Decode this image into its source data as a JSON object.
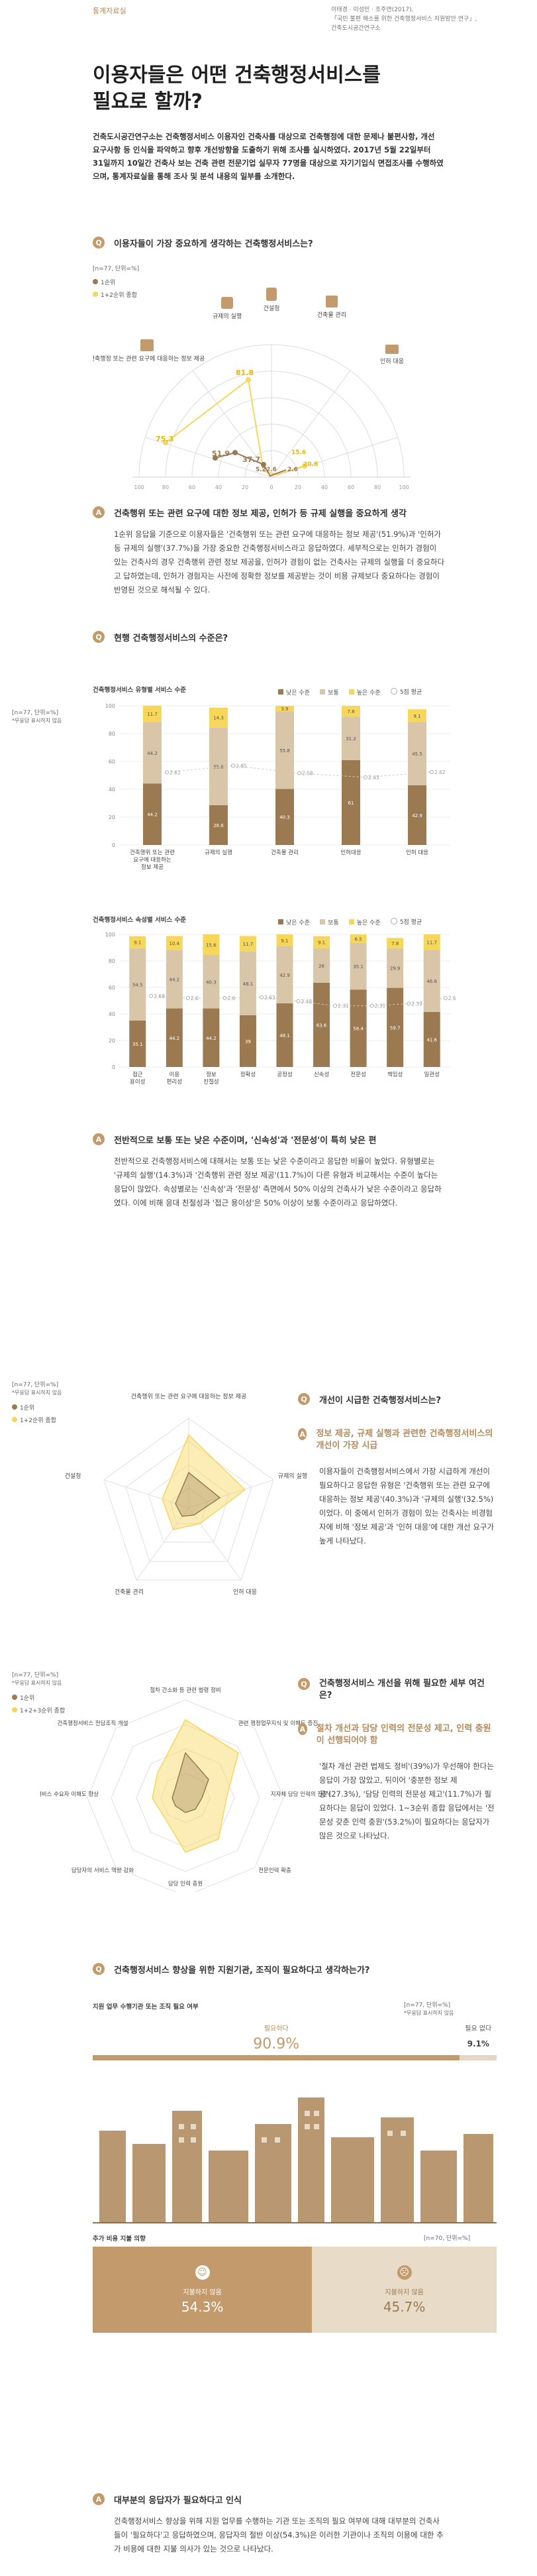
{
  "header": {
    "tag": "통계자료실",
    "source_line1": "이태경 · 이성민 · 조주연(2017),",
    "source_line2": "「국민 불편 해소를 위한 건축행정서비스 지원방안 연구」,",
    "source_line3": "건축도시공간연구소",
    "title_line1": "이용자들은 어떤 건축행정서비스를",
    "title_line2": "필요로 할까?",
    "intro": "건축도시공간연구소는 건축행정서비스 이용자인 건축사를 대상으로 건축행정에 대한 문제나 불편사항, 개선 요구사항 등 인식을 파악하고 향후 개선방향을 도출하기 위해 조사를 실시하였다. 2017년 5월 22일부터 31일까지 10일간 건축사 보는 건축 관련 전문기업 실무자 77명을 대상으로 자기기입식 면접조사를 수행하였으며, 통계자료실을 통해 조사 및 분석 내용의 일부를 소개한다."
  },
  "q1": {
    "question": "이용자들이 가장 중요하게 생각하는 건축행정서비스는?",
    "n_label": "[n=77, 단위=%]",
    "legend": [
      "1순위",
      "1+2순위 종합"
    ],
    "icon_labels": [
      "규제의 실행",
      "건설청",
      "건축물 관리",
      "인허 대응",
      "건축행정 또는 관련 요구에 대응하는 정보 제공"
    ],
    "axis_ticks": [
      "100",
      "80",
      "60",
      "40",
      "20",
      "0",
      "20",
      "40",
      "60",
      "80",
      "100"
    ]
  },
  "q1_answer": {
    "heading": "건축행위 또는 관련 요구에 대한 정보 제공, 인허가 등 규제 실행을 중요하게 생각",
    "body": "1순위 응답을 기준으로 이용자들은 '건축행위 또는 관련 요구에 대응하는 정보 제공'(51.9%)과 '인허가 등 규제의 실행'(37.7%)을 가장 중요한 건축행정서비스라고 응답하였다. 세부적으로는 인허가 경험이 있는 건축사의 경우 건축행위 관련 정보 제공을, 인허가 경험이 없는 건축사는 규제의 실행을 더 중요하다고 답하였는데, 인허가 경험자는 사전에 정확한 정보를 제공받는 것이 비용 규제보다 중요하다는 경험이 반영된 것으로 해석될 수 있다."
  },
  "q2": {
    "question": "현행 건축행정서비스의 수준은?",
    "n_label": "[n=77, 단위=%]",
    "n_note": "*무응답 표시하지 않음",
    "legend": [
      "낮은 수준",
      "보통",
      "높은 수준",
      "5점 평균"
    ]
  },
  "chart_data": [
    {
      "type": "bar",
      "title": "건축행정서비스 유형별 서비스 수준",
      "categories": [
        "건축행위 또는 관련 요구에 대응하는 정보 제공",
        "규제의 실행",
        "건축물 관리",
        "인허대응",
        "인허 대응"
      ],
      "series": [
        {
          "name": "낮은 수준",
          "values": [
            44.2,
            28.6,
            40.3,
            61.0,
            42.9
          ]
        },
        {
          "name": "보통",
          "values": [
            44.2,
            55.8,
            55.8,
            31.2,
            45.5
          ]
        },
        {
          "name": "높은 수준",
          "values": [
            11.7,
            14.3,
            3.9,
            7.8,
            9.1
          ]
        }
      ],
      "avg": [
        2.61,
        2.85,
        2.58,
        2.43,
        2.62
      ],
      "ylim": [
        0,
        100
      ]
    },
    {
      "type": "bar",
      "title": "건축행정서비스 속성별 서비스 수준",
      "categories": [
        "접근 용이성",
        "이용 편리성",
        "정보 친절성",
        "정확성",
        "공정성",
        "신속성",
        "전문성",
        "책임성",
        "일관성"
      ],
      "series": [
        {
          "name": "낮은 수준",
          "values": [
            35.1,
            44.2,
            44.2,
            39.0,
            48.1,
            63.6,
            58.4,
            59.7,
            41.6
          ]
        },
        {
          "name": "보통",
          "values": [
            54.5,
            44.2,
            40.3,
            48.1,
            42.9,
            26.0,
            35.1,
            29.9,
            46.8
          ]
        },
        {
          "name": "높은 수준",
          "values": [
            9.1,
            10.4,
            15.6,
            11.7,
            9.1,
            9.1,
            6.5,
            7.8,
            11.7
          ]
        }
      ],
      "avg": [
        2.68,
        2.6,
        2.6,
        2.63,
        2.48,
        2.31,
        2.31,
        2.39,
        2.6
      ],
      "ylim": [
        0,
        100
      ]
    }
  ],
  "q2_answer": {
    "heading": "전반적으로 보통 또는 낮은 수준이며, '신속성'과 '전문성'이 특히 낮은 편",
    "body": "전반적으로 건축행정서비스에 대해서는 보통 또는 낮은 수준이라고 응답한 비율이 높았다. 유형별로는 '규제의 실행'(14.3%)과 '건축행위 관련 정보 제공'(11.7%)이 다른 유형과 비교해서는 수준이 높다는 응답이 많았다. 속성별로는 '신속성'과 '전문성' 측면에서 50% 이상의 건축사가 낮은 수준이라고 응답하였다. 이에 비해 응대 친절성과 '접근 용이성'은 50% 이상이 보통 수준이라고 응답하였다."
  },
  "q3": {
    "n_label": "[n=77, 단위=%]",
    "n_note": "*무응답 표시하지 않음",
    "legend": [
      "1순위",
      "1+2순위 종합"
    ],
    "radar_labels": [
      "건축행위 또는 관련 요구에 대응하는 정보 제공",
      "규제의 실행",
      "인허 대응",
      "건축물 관리",
      "건설청"
    ],
    "question": "개선이 시급한 건축행정서비스는?",
    "answer_heading": "정보 제공, 규제 실행과 관련한 건축행정서비스의 개선이 가장 시급",
    "answer_body": "이용자들이 건축행정서비스에서 가장 시급하게 개선이 필요하다고 응답한 유형은 '건축행위 또는 관련 요구에 대응하는 정보 제공'(40.3%)과 '규제의 실행'(32.5%)이었다. 이 중에서 인허가 경험이 있는 건축사는 비경험자에 비해 '정보 제공'과 '인허 대응'에 대한 개선 요구가 높게 나타났다."
  },
  "q4": {
    "n_label": "[n=77, 단위=%]",
    "n_note": "*무응답 표시하지 않음",
    "legend": [
      "1순위",
      "1+2+3순위 종합"
    ],
    "radar_labels": [
      "절차 간소화 등 관련 법령 정비",
      "관련 행정업무지식 및 이해도 증진",
      "지자체 담당 인력의 전문성 제고",
      "전문인력 확충",
      "담당 인력 충원",
      "담당자의 서비스 역량 강화",
      "서비스 수요자 이해도 향상",
      "건축행정서비스 전담조직 개설"
    ],
    "question": "건축행정서비스 개선을 위해 필요한 세부 여건은?",
    "answer_heading": "절차 개선과 담당 인력의 전문성 제고, 인력 충원이 선행되어야 함",
    "answer_body": "'절차 개선 관련 법제도 정비'(39%)가 우선해야 한다는 응답이 가장 많았고, 뒤이어 '충분한 정보 제공'(27.3%), '담당 인력의 전문성 제고'(11.7%)가 필요하다는 응답이 있었다. 1~3순위 종합 응답에서는 '전문성 갖춘 인력 충원'(53.2%)이 필요하다는 응답자가 많은 것으로 나타났다."
  },
  "q5": {
    "question": "건축행정서비스 향상을 위한 지원기관, 조직이 필요하다고 생각하는가?",
    "bar_title": "지원 업무 수행기관 또는 조직 필요 여부",
    "n_label": "[n=77, 단위=%]",
    "n_note": "*무응답 표시하지 않음",
    "need_label": "필요하다",
    "need_value": "90.9%",
    "no_need_label": "필요 없다",
    "no_need_value": "9.1%",
    "need_pct": 90.9,
    "role_title": "추가 비용 지불 의향",
    "role_n": "[n=70, 단위=%]",
    "yes_label": "지불하지 않음",
    "yes_value": "54.3%",
    "no_label": "지불하지 않음",
    "no_value": "45.7%"
  },
  "q5_answer": {
    "heading": "대부분의 응답자가 필요하다고 인식",
    "body": "건축행정서비스 향상을 위해 지원 업무를 수행하는 기관 또는 조직의 필요 여부에 대해 대부분의 건축사들이 '필요하다'고 응답하였으며, 응답자의 절반 이상(54.3%)은 이러한 기관이나 조직의 이용에 대한 추가 비용에 대한 지불 의사가 있는 것으로 나타났다."
  },
  "colors": {
    "accent": "#c29a6b",
    "dark": "#9b7a52",
    "mid": "#d9c5a8",
    "yellow": "#f6d65b",
    "light": "#efe6d8"
  }
}
